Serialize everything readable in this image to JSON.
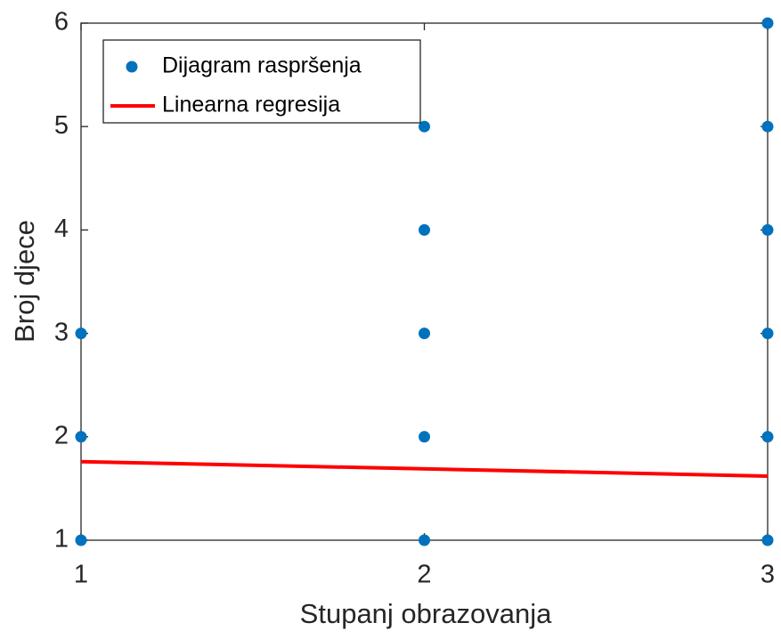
{
  "chart_data": {
    "type": "scatter",
    "xlabel": "Stupanj obrazovanja",
    "ylabel": "Broj djece",
    "xlim": [
      1,
      3
    ],
    "xticks": [
      1,
      2,
      3
    ],
    "ylim": [
      1,
      6
    ],
    "yticks": [
      1,
      2,
      3,
      4,
      5,
      6
    ],
    "legend": "upper left",
    "series": [
      {
        "name": "Dijagram raspršenja",
        "type": "scatter",
        "color": "#0072bd",
        "x": [
          1,
          1,
          1,
          2,
          2,
          2,
          2,
          2,
          3,
          3,
          3,
          3,
          3,
          3
        ],
        "values": [
          1,
          2,
          3,
          1,
          2,
          3,
          4,
          5,
          1,
          2,
          3,
          4,
          5,
          6
        ]
      },
      {
        "name": "Linearna regresija",
        "type": "line",
        "color": "#ff0000",
        "x": [
          1,
          3
        ],
        "values": [
          1.76,
          1.62
        ]
      }
    ]
  }
}
